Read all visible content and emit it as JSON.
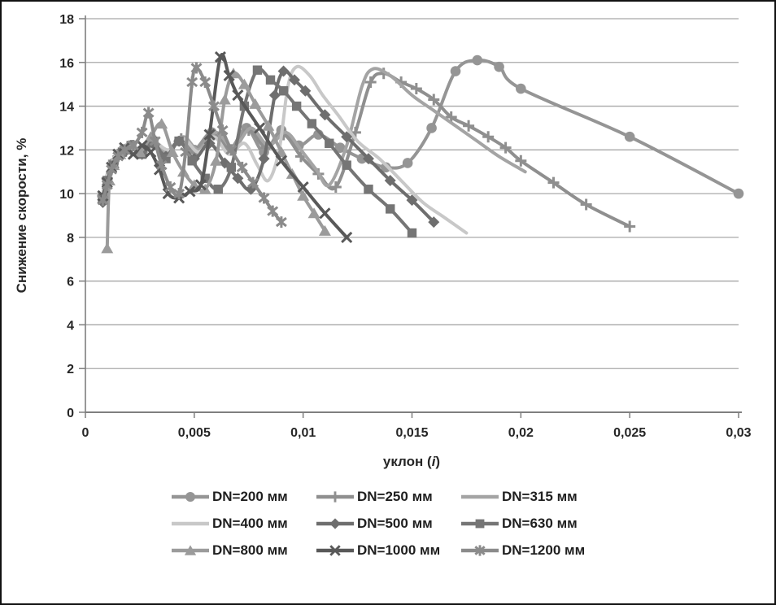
{
  "chart_data": {
    "type": "line",
    "title": "",
    "ylabel": "Снижение скорости, %",
    "xlabel_parts": [
      "уклон (",
      "i",
      ")"
    ],
    "xlim": [
      0,
      0.03
    ],
    "ylim": [
      0,
      18
    ],
    "grid": true,
    "legend_position": "bottom",
    "axis_color": "#7f7f7f",
    "grid_color": "#a8a8a8",
    "text_color": "#262626",
    "x_ticks": [
      {
        "v": 0,
        "label": "0"
      },
      {
        "v": 0.005,
        "label": "0,005"
      },
      {
        "v": 0.01,
        "label": "0,01"
      },
      {
        "v": 0.015,
        "label": "0,015"
      },
      {
        "v": 0.02,
        "label": "0,02"
      },
      {
        "v": 0.025,
        "label": "0,025"
      },
      {
        "v": 0.03,
        "label": "0,03"
      }
    ],
    "y_ticks": [
      {
        "v": 0,
        "label": "0"
      },
      {
        "v": 2,
        "label": "2"
      },
      {
        "v": 4,
        "label": "4"
      },
      {
        "v": 6,
        "label": "6"
      },
      {
        "v": 8,
        "label": "8"
      },
      {
        "v": 10,
        "label": "10"
      },
      {
        "v": 12,
        "label": "12"
      },
      {
        "v": 14,
        "label": "14"
      },
      {
        "v": 16,
        "label": "16"
      },
      {
        "v": 18,
        "label": "18"
      }
    ],
    "series": [
      {
        "name": "DN=200 мм",
        "id": "dn-200",
        "color": "#959595",
        "marker": "circle",
        "points": [
          [
            0.0008,
            9.8
          ],
          [
            0.001,
            10.6
          ],
          [
            0.0013,
            11.4
          ],
          [
            0.0017,
            11.9
          ],
          [
            0.0021,
            12.2
          ],
          [
            0.0025,
            11.9
          ],
          [
            0.003,
            12.3
          ],
          [
            0.0036,
            11.8
          ],
          [
            0.0043,
            12.4
          ],
          [
            0.005,
            12.0
          ],
          [
            0.0058,
            12.8
          ],
          [
            0.0066,
            12.0
          ],
          [
            0.0074,
            13.0
          ],
          [
            0.0082,
            11.9
          ],
          [
            0.009,
            12.9
          ],
          [
            0.0098,
            12.2
          ],
          [
            0.0107,
            12.7
          ],
          [
            0.0117,
            12.1
          ],
          [
            0.0127,
            11.6
          ],
          [
            0.0138,
            11.2
          ],
          [
            0.0148,
            11.4
          ],
          [
            0.0159,
            13.0
          ],
          [
            0.017,
            15.6
          ],
          [
            0.018,
            16.1
          ],
          [
            0.019,
            15.8
          ],
          [
            0.02,
            14.8
          ],
          [
            0.025,
            12.6
          ],
          [
            0.03,
            10.0
          ]
        ]
      },
      {
        "name": "DN=250 мм",
        "id": "dn-250",
        "color": "#8f8f8f",
        "marker": "plus",
        "points": [
          [
            0.0008,
            9.9
          ],
          [
            0.001,
            10.7
          ],
          [
            0.0013,
            11.5
          ],
          [
            0.0017,
            12.0
          ],
          [
            0.0021,
            12.2
          ],
          [
            0.0026,
            11.9
          ],
          [
            0.0031,
            12.4
          ],
          [
            0.0037,
            11.8
          ],
          [
            0.0044,
            12.5
          ],
          [
            0.0051,
            11.9
          ],
          [
            0.0059,
            12.7
          ],
          [
            0.0067,
            12.0
          ],
          [
            0.0075,
            12.9
          ],
          [
            0.0083,
            12.1
          ],
          [
            0.0091,
            12.7
          ],
          [
            0.0099,
            11.7
          ],
          [
            0.0107,
            10.9
          ],
          [
            0.0115,
            10.3
          ],
          [
            0.0124,
            12.8
          ],
          [
            0.0131,
            15.1
          ],
          [
            0.0137,
            15.5
          ],
          [
            0.0145,
            15.1
          ],
          [
            0.0152,
            14.8
          ],
          [
            0.016,
            14.3
          ],
          [
            0.0168,
            13.5
          ],
          [
            0.0176,
            13.1
          ],
          [
            0.0185,
            12.6
          ],
          [
            0.0193,
            12.1
          ],
          [
            0.02,
            11.5
          ],
          [
            0.0215,
            10.5
          ],
          [
            0.023,
            9.5
          ],
          [
            0.025,
            8.5
          ]
        ]
      },
      {
        "name": "DN=315 мм",
        "id": "dn-315",
        "color": "#a4a4a4",
        "marker": "none",
        "points": [
          [
            0.0008,
            9.9
          ],
          [
            0.001,
            10.8
          ],
          [
            0.0013,
            11.5
          ],
          [
            0.0017,
            12.0
          ],
          [
            0.0021,
            12.2
          ],
          [
            0.0026,
            12.0
          ],
          [
            0.0031,
            12.4
          ],
          [
            0.0038,
            11.9
          ],
          [
            0.0045,
            12.6
          ],
          [
            0.0052,
            12.0
          ],
          [
            0.006,
            12.8
          ],
          [
            0.0068,
            12.1
          ],
          [
            0.0076,
            13.0
          ],
          [
            0.0084,
            12.2
          ],
          [
            0.0092,
            12.8
          ],
          [
            0.0099,
            12.0
          ],
          [
            0.0106,
            11.1
          ],
          [
            0.0112,
            10.4
          ],
          [
            0.012,
            12.2
          ],
          [
            0.0127,
            14.9
          ],
          [
            0.0132,
            15.7
          ],
          [
            0.014,
            15.4
          ],
          [
            0.015,
            14.5
          ],
          [
            0.016,
            13.8
          ],
          [
            0.017,
            13.1
          ],
          [
            0.018,
            12.4
          ],
          [
            0.019,
            11.7
          ],
          [
            0.0202,
            11.0
          ]
        ]
      },
      {
        "name": "DN=400 мм",
        "id": "dn-400",
        "color": "#c8c8c8",
        "marker": "none",
        "points": [
          [
            0.0008,
            10.0
          ],
          [
            0.001,
            10.9
          ],
          [
            0.0013,
            11.6
          ],
          [
            0.0017,
            12.1
          ],
          [
            0.0021,
            12.3
          ],
          [
            0.0026,
            11.9
          ],
          [
            0.0031,
            12.4
          ],
          [
            0.0038,
            12.0
          ],
          [
            0.0045,
            12.5
          ],
          [
            0.0052,
            11.9
          ],
          [
            0.0059,
            12.6
          ],
          [
            0.0066,
            11.8
          ],
          [
            0.0073,
            12.3
          ],
          [
            0.0079,
            11.3
          ],
          [
            0.0084,
            10.6
          ],
          [
            0.0089,
            12.0
          ],
          [
            0.0093,
            14.9
          ],
          [
            0.0097,
            15.8
          ],
          [
            0.0103,
            15.4
          ],
          [
            0.0109,
            14.5
          ],
          [
            0.0116,
            13.6
          ],
          [
            0.0125,
            12.4
          ],
          [
            0.0135,
            11.6
          ],
          [
            0.0145,
            10.6
          ],
          [
            0.0155,
            9.6
          ],
          [
            0.0165,
            8.9
          ],
          [
            0.0175,
            8.2
          ]
        ]
      },
      {
        "name": "DN=500 мм",
        "id": "dn-500",
        "color": "#6e6e6e",
        "marker": "diamond",
        "points": [
          [
            0.0008,
            9.6
          ],
          [
            0.001,
            10.4
          ],
          [
            0.0013,
            11.2
          ],
          [
            0.0017,
            11.8
          ],
          [
            0.0021,
            12.1
          ],
          [
            0.0026,
            11.8
          ],
          [
            0.0031,
            12.3
          ],
          [
            0.0037,
            11.7
          ],
          [
            0.0043,
            12.4
          ],
          [
            0.005,
            11.6
          ],
          [
            0.0057,
            12.3
          ],
          [
            0.0064,
            11.4
          ],
          [
            0.007,
            10.7
          ],
          [
            0.0076,
            10.2
          ],
          [
            0.0082,
            11.6
          ],
          [
            0.0087,
            14.5
          ],
          [
            0.0091,
            15.6
          ],
          [
            0.0096,
            15.2
          ],
          [
            0.0101,
            14.7
          ],
          [
            0.011,
            13.6
          ],
          [
            0.012,
            12.6
          ],
          [
            0.013,
            11.6
          ],
          [
            0.014,
            10.6
          ],
          [
            0.015,
            9.7
          ],
          [
            0.016,
            8.7
          ]
        ]
      },
      {
        "name": "DN=630 мм",
        "id": "dn-630",
        "color": "#757575",
        "marker": "square",
        "points": [
          [
            0.0008,
            9.8
          ],
          [
            0.001,
            10.6
          ],
          [
            0.0013,
            11.3
          ],
          [
            0.0017,
            11.9
          ],
          [
            0.0021,
            12.2
          ],
          [
            0.0026,
            11.8
          ],
          [
            0.0031,
            12.4
          ],
          [
            0.0037,
            11.6
          ],
          [
            0.0043,
            12.4
          ],
          [
            0.0049,
            11.5
          ],
          [
            0.0055,
            10.7
          ],
          [
            0.0061,
            10.2
          ],
          [
            0.0067,
            11.2
          ],
          [
            0.0073,
            14.0
          ],
          [
            0.0079,
            15.65
          ],
          [
            0.0085,
            15.2
          ],
          [
            0.0091,
            14.7
          ],
          [
            0.0097,
            14.0
          ],
          [
            0.0104,
            13.2
          ],
          [
            0.0112,
            12.3
          ],
          [
            0.012,
            11.3
          ],
          [
            0.013,
            10.2
          ],
          [
            0.014,
            9.3
          ],
          [
            0.015,
            8.2
          ]
        ]
      },
      {
        "name": "DN=800 мм",
        "id": "dn-800",
        "color": "#9b9b9b",
        "marker": "triangle",
        "points": [
          [
            0.001,
            7.5
          ],
          [
            0.0011,
            10.6
          ],
          [
            0.0013,
            11.3
          ],
          [
            0.0016,
            11.8
          ],
          [
            0.002,
            12.2
          ],
          [
            0.0025,
            11.9
          ],
          [
            0.003,
            12.6
          ],
          [
            0.0035,
            13.2
          ],
          [
            0.004,
            11.9
          ],
          [
            0.0045,
            11.0
          ],
          [
            0.005,
            10.4
          ],
          [
            0.0055,
            10.2
          ],
          [
            0.006,
            11.5
          ],
          [
            0.0064,
            14.3
          ],
          [
            0.0068,
            15.5
          ],
          [
            0.0073,
            15.0
          ],
          [
            0.0078,
            14.1
          ],
          [
            0.0084,
            13.1
          ],
          [
            0.009,
            11.9
          ],
          [
            0.0095,
            10.9
          ],
          [
            0.01,
            9.9
          ],
          [
            0.0105,
            9.1
          ],
          [
            0.011,
            8.3
          ]
        ]
      },
      {
        "name": "DN=1000 мм",
        "id": "dn-1000",
        "color": "#595959",
        "marker": "x",
        "points": [
          [
            0.0008,
            9.9
          ],
          [
            0.001,
            10.5
          ],
          [
            0.0012,
            11.2
          ],
          [
            0.0015,
            11.8
          ],
          [
            0.0018,
            12.1
          ],
          [
            0.0022,
            11.8
          ],
          [
            0.0026,
            12.2
          ],
          [
            0.003,
            11.9
          ],
          [
            0.0034,
            11.1
          ],
          [
            0.0038,
            10.0
          ],
          [
            0.0043,
            9.8
          ],
          [
            0.0048,
            10.1
          ],
          [
            0.0053,
            10.4
          ],
          [
            0.0057,
            12.7
          ],
          [
            0.0062,
            16.25
          ],
          [
            0.0066,
            15.4
          ],
          [
            0.007,
            14.5
          ],
          [
            0.008,
            13.0
          ],
          [
            0.009,
            11.5
          ],
          [
            0.01,
            10.3
          ],
          [
            0.011,
            9.1
          ],
          [
            0.012,
            8.0
          ]
        ]
      },
      {
        "name": "DN=1200 мм",
        "id": "dn-1200",
        "color": "#8b8b8b",
        "marker": "star",
        "points": [
          [
            0.0008,
            9.7
          ],
          [
            0.001,
            10.4
          ],
          [
            0.0012,
            11.1
          ],
          [
            0.0015,
            11.7
          ],
          [
            0.0018,
            12.0
          ],
          [
            0.0022,
            12.2
          ],
          [
            0.0026,
            12.8
          ],
          [
            0.0029,
            13.7
          ],
          [
            0.0032,
            12.4
          ],
          [
            0.0035,
            11.3
          ],
          [
            0.0039,
            10.3
          ],
          [
            0.0043,
            10.0
          ],
          [
            0.0046,
            11.9
          ],
          [
            0.0049,
            15.1
          ],
          [
            0.0051,
            15.75
          ],
          [
            0.0055,
            15.1
          ],
          [
            0.0059,
            14.0
          ],
          [
            0.0063,
            12.9
          ],
          [
            0.0067,
            12.0
          ],
          [
            0.0072,
            11.2
          ],
          [
            0.0077,
            10.5
          ],
          [
            0.0082,
            9.8
          ],
          [
            0.0086,
            9.2
          ],
          [
            0.009,
            8.7
          ]
        ]
      }
    ]
  }
}
